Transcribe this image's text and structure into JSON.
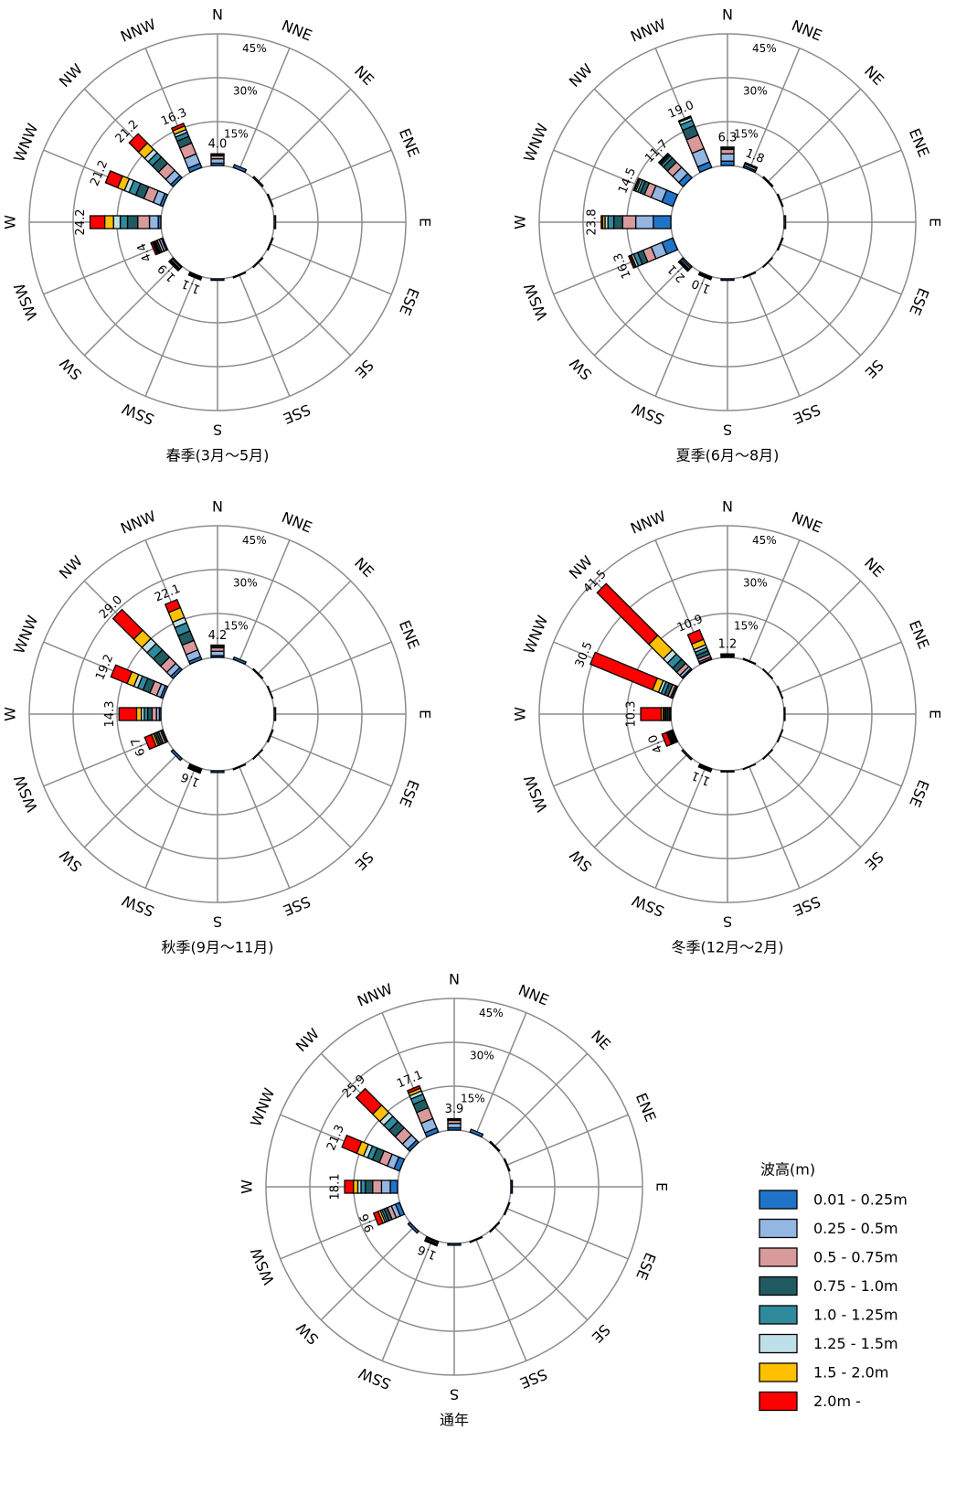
{
  "legend": {
    "title": "波高(m)",
    "items": [
      {
        "name": "0.01 - 0.25m",
        "color": "#1f74c8"
      },
      {
        "name": "0.25 - 0.5m",
        "color": "#93b6e2"
      },
      {
        "name": "0.5 - 0.75m",
        "color": "#d99a9b"
      },
      {
        "name": "0.75 - 1.0m",
        "color": "#215a63"
      },
      {
        "name": "1.0 - 1.25m",
        "color": "#2f8a9c"
      },
      {
        "name": "1.25 - 1.5m",
        "color": "#bfe0e8"
      },
      {
        "name": "1.5 - 2.0m",
        "color": "#ffc000"
      },
      {
        "name": "2.0m -",
        "color": "#ff0000"
      }
    ]
  },
  "chart_data": [
    {
      "type": "rose",
      "title": "春季(3月～5月)",
      "directions": [
        "N",
        "NNE",
        "NE",
        "ENE",
        "E",
        "ESE",
        "SE",
        "SSE",
        "S",
        "SSW",
        "SW",
        "WSW",
        "W",
        "WNW",
        "NW",
        "NNW"
      ],
      "rlim": [
        0,
        45
      ],
      "rticks": [
        {
          "value": 15,
          "label": "15%"
        },
        {
          "value": 30,
          "label": "30%"
        },
        {
          "value": 45,
          "label": "45%"
        }
      ],
      "series": [
        {
          "values": [
            0.8,
            1.0,
            0.5,
            0.3,
            0.5,
            0.3,
            0.3,
            0.3,
            0.5,
            0.3,
            0.4,
            0.5,
            0.9,
            1.0,
            1.0,
            1.5
          ]
        },
        {
          "values": [
            1.5,
            0,
            0,
            0,
            0,
            0,
            0,
            0,
            0,
            0.4,
            0.6,
            0.8,
            3.0,
            2.5,
            2.5,
            3.5
          ]
        },
        {
          "values": [
            1.0,
            0,
            0,
            0,
            0,
            0,
            0,
            0,
            0,
            0.2,
            0.4,
            0.8,
            4.0,
            3.5,
            3.5,
            4.0
          ]
        },
        {
          "values": [
            0.4,
            0,
            0,
            0,
            0,
            0,
            0,
            0,
            0,
            0.1,
            0.2,
            0.6,
            3.5,
            3.0,
            3.0,
            2.5
          ]
        },
        {
          "values": [
            0.2,
            0,
            0,
            0,
            0,
            0,
            0,
            0,
            0,
            0.1,
            0.1,
            0.4,
            2.5,
            2.5,
            2.0,
            1.5
          ]
        },
        {
          "values": [
            0.1,
            0,
            0,
            0,
            0,
            0,
            0,
            0,
            0,
            0,
            0.1,
            0.3,
            2.3,
            1.7,
            1.7,
            1.0
          ]
        },
        {
          "values": [
            0,
            0,
            0,
            0,
            0,
            0,
            0,
            0,
            0,
            0,
            0.1,
            0.4,
            3.0,
            2.5,
            3.0,
            1.3
          ]
        },
        {
          "values": [
            0,
            0,
            0,
            0,
            0,
            0,
            0,
            0,
            0,
            0,
            0,
            0.6,
            5.0,
            4.5,
            4.5,
            1.0
          ]
        }
      ],
      "total_labels": [
        "4.0",
        null,
        null,
        null,
        null,
        null,
        null,
        null,
        null,
        "1.1",
        "1.9",
        "4.4",
        "24.2",
        "21.2",
        "21.2",
        "16.3"
      ]
    },
    {
      "type": "rose",
      "title": "夏季(6月～8月)",
      "directions": [
        "N",
        "NNE",
        "NE",
        "ENE",
        "E",
        "ESE",
        "SE",
        "SSE",
        "S",
        "SSW",
        "SW",
        "WSW",
        "W",
        "WNW",
        "NW",
        "NNW"
      ],
      "rlim": [
        0,
        45
      ],
      "rticks": [
        {
          "value": 15,
          "label": "15%"
        },
        {
          "value": 30,
          "label": "30%"
        },
        {
          "value": 45,
          "label": "45%"
        }
      ],
      "series": [
        {
          "values": [
            1.5,
            0.6,
            0.4,
            0.3,
            0.5,
            0.3,
            0.2,
            0.3,
            0.5,
            0.4,
            0.6,
            4.0,
            6.0,
            4.0,
            2.0,
            2.0
          ]
        },
        {
          "values": [
            2.5,
            0.7,
            0,
            0,
            0,
            0,
            0,
            0,
            0,
            0.3,
            0.6,
            4.0,
            6.0,
            4.0,
            3.0,
            5.0
          ]
        },
        {
          "values": [
            1.5,
            0.3,
            0,
            0,
            0,
            0,
            0,
            0,
            0,
            0.2,
            0.4,
            3.0,
            4.5,
            2.5,
            2.5,
            5.0
          ]
        },
        {
          "values": [
            0.5,
            0.1,
            0,
            0,
            0,
            0,
            0,
            0,
            0,
            0.1,
            0.2,
            2.0,
            3.0,
            1.5,
            2.0,
            3.5
          ]
        },
        {
          "values": [
            0.2,
            0.1,
            0,
            0,
            0,
            0,
            0,
            0,
            0,
            0,
            0.1,
            1.5,
            2.0,
            1.0,
            1.0,
            2.0
          ]
        },
        {
          "values": [
            0.1,
            0,
            0,
            0,
            0,
            0,
            0,
            0,
            0,
            0,
            0.1,
            0.8,
            1.0,
            0.7,
            0.5,
            1.0
          ]
        },
        {
          "values": [
            0,
            0,
            0,
            0,
            0,
            0,
            0,
            0,
            0,
            0,
            0.1,
            0.5,
            0.8,
            0.5,
            0.4,
            0.3
          ]
        },
        {
          "values": [
            0,
            0,
            0,
            0,
            0,
            0,
            0,
            0,
            0,
            0,
            0,
            0.5,
            0.5,
            0.3,
            0.3,
            0.2
          ]
        }
      ],
      "total_labels": [
        "6.3",
        "1.8",
        null,
        null,
        null,
        null,
        null,
        null,
        null,
        "1.0",
        "2.1",
        "16.3",
        "23.8",
        "14.5",
        "11.7",
        "19.0"
      ]
    },
    {
      "type": "rose",
      "title": "秋季(9月～11月)",
      "directions": [
        "N",
        "NNE",
        "NE",
        "ENE",
        "E",
        "ESE",
        "SE",
        "SSE",
        "S",
        "SSW",
        "SW",
        "WSW",
        "W",
        "WNW",
        "NW",
        "NNW"
      ],
      "rlim": [
        0,
        45
      ],
      "rticks": [
        {
          "value": 15,
          "label": "15%"
        },
        {
          "value": 30,
          "label": "30%"
        },
        {
          "value": 45,
          "label": "45%"
        }
      ],
      "series": [
        {
          "values": [
            0.6,
            0.8,
            0.3,
            0.2,
            0.5,
            0.3,
            0.2,
            0.3,
            0.6,
            0.3,
            0.8,
            0.3,
            0.5,
            0.8,
            1.0,
            1.0
          ]
        },
        {
          "values": [
            1.5,
            0,
            0,
            0,
            0,
            0,
            0,
            0,
            0,
            0.4,
            0,
            0.5,
            1.0,
            1.5,
            2.0,
            2.5
          ]
        },
        {
          "values": [
            1.2,
            0,
            0,
            0,
            0,
            0,
            0,
            0,
            0,
            0.4,
            0,
            0.8,
            1.5,
            2.5,
            3.0,
            3.5
          ]
        },
        {
          "values": [
            0.5,
            0,
            0,
            0,
            0,
            0,
            0,
            0,
            0,
            0.2,
            0,
            0.7,
            1.5,
            2.5,
            3.5,
            3.5
          ]
        },
        {
          "values": [
            0.2,
            0,
            0,
            0,
            0,
            0,
            0,
            0,
            0,
            0.1,
            0,
            0.6,
            1.2,
            2.0,
            3.0,
            3.0
          ]
        },
        {
          "values": [
            0.1,
            0,
            0,
            0,
            0,
            0,
            0,
            0,
            0,
            0.1,
            0,
            0.5,
            1.0,
            1.4,
            2.5,
            2.0
          ]
        },
        {
          "values": [
            0.1,
            0,
            0,
            0,
            0,
            0,
            0,
            0,
            0,
            0.1,
            0,
            0.8,
            1.6,
            2.5,
            4.0,
            3.6
          ]
        },
        {
          "values": [
            0,
            0,
            0,
            0,
            0,
            0,
            0,
            0,
            0,
            0,
            0,
            2.5,
            6.0,
            6.0,
            10.0,
            3.0
          ]
        }
      ],
      "total_labels": [
        "4.2",
        null,
        null,
        null,
        null,
        null,
        null,
        null,
        null,
        "1.6",
        null,
        "6.7",
        "14.3",
        "19.2",
        "29.0",
        "22.1"
      ]
    },
    {
      "type": "rose",
      "title": "冬季(12月～2月)",
      "directions": [
        "N",
        "NNE",
        "NE",
        "ENE",
        "E",
        "ESE",
        "SE",
        "SSE",
        "S",
        "SSW",
        "SW",
        "WSW",
        "W",
        "WNW",
        "NW",
        "NNW"
      ],
      "rlim": [
        0,
        45
      ],
      "rticks": [
        {
          "value": 15,
          "label": "15%"
        },
        {
          "value": 30,
          "label": "30%"
        },
        {
          "value": 45,
          "label": "45%"
        }
      ],
      "series": [
        {
          "values": [
            0.2,
            0.3,
            0.2,
            0.2,
            0.3,
            0.2,
            0.2,
            0.2,
            0.4,
            0.2,
            0.5,
            0.2,
            0.2,
            0.3,
            0.5,
            0.3
          ]
        },
        {
          "values": [
            0.4,
            0,
            0,
            0,
            0,
            0,
            0,
            0,
            0,
            0.3,
            0,
            0.3,
            0.4,
            0.5,
            1.0,
            0.6
          ]
        },
        {
          "values": [
            0.3,
            0,
            0,
            0,
            0,
            0,
            0,
            0,
            0,
            0.2,
            0,
            0.4,
            0.5,
            1.0,
            1.5,
            1.0
          ]
        },
        {
          "values": [
            0.1,
            0,
            0,
            0,
            0,
            0,
            0,
            0,
            0,
            0.2,
            0,
            0.4,
            0.6,
            1.3,
            2.0,
            1.3
          ]
        },
        {
          "values": [
            0.1,
            0,
            0,
            0,
            0,
            0,
            0,
            0,
            0,
            0.1,
            0,
            0.3,
            0.5,
            1.2,
            2.5,
            1.2
          ]
        },
        {
          "values": [
            0.1,
            0,
            0,
            0,
            0,
            0,
            0,
            0,
            0,
            0.1,
            0,
            0.3,
            0.4,
            1.0,
            2.0,
            1.0
          ]
        },
        {
          "values": [
            0,
            0,
            0,
            0,
            0,
            0,
            0,
            0,
            0,
            0,
            0,
            0.4,
            0.7,
            2.2,
            7.0,
            2.0
          ]
        },
        {
          "values": [
            0,
            0,
            0,
            0,
            0,
            0,
            0,
            0,
            0,
            0,
            0,
            1.7,
            7.0,
            23.0,
            25.0,
            3.5
          ]
        }
      ],
      "total_labels": [
        "1.2",
        null,
        null,
        null,
        null,
        null,
        null,
        null,
        null,
        "1.1",
        null,
        "4.0",
        "10.3",
        "30.5",
        "41.5",
        "10.9"
      ]
    },
    {
      "type": "rose",
      "title": "通年",
      "directions": [
        "N",
        "NNE",
        "NE",
        "ENE",
        "E",
        "ESE",
        "SE",
        "SSE",
        "S",
        "SSW",
        "SW",
        "WSW",
        "W",
        "WNW",
        "NW",
        "NNW"
      ],
      "rlim": [
        0,
        45
      ],
      "rticks": [
        {
          "value": 15,
          "label": "15%"
        },
        {
          "value": 30,
          "label": "30%"
        },
        {
          "value": 45,
          "label": "45%"
        }
      ],
      "series": [
        {
          "values": [
            0.8,
            1.0,
            0.4,
            0.3,
            0.5,
            0.3,
            0.3,
            0.3,
            0.6,
            0.4,
            0.8,
            1.5,
            2.5,
            2.0,
            1.0,
            1.5
          ]
        },
        {
          "values": [
            1.5,
            0,
            0,
            0,
            0,
            0,
            0,
            0,
            0,
            0.5,
            0,
            1.5,
            3.0,
            2.5,
            2.5,
            3.5
          ]
        },
        {
          "values": [
            1.0,
            0,
            0,
            0,
            0,
            0,
            0,
            0,
            0,
            0.3,
            0,
            1.5,
            3.0,
            3.0,
            3.5,
            4.0
          ]
        },
        {
          "values": [
            0.4,
            0,
            0,
            0,
            0,
            0,
            0,
            0,
            0,
            0.2,
            0,
            1.2,
            2.5,
            2.5,
            3.0,
            3.0
          ]
        },
        {
          "values": [
            0.1,
            0,
            0,
            0,
            0,
            0,
            0,
            0,
            0,
            0.1,
            0,
            0.8,
            1.5,
            1.8,
            2.5,
            2.0
          ]
        },
        {
          "values": [
            0.1,
            0,
            0,
            0,
            0,
            0,
            0,
            0,
            0,
            0.1,
            0,
            0.6,
            1.1,
            1.5,
            1.9,
            1.2
          ]
        },
        {
          "values": [
            0,
            0,
            0,
            0,
            0,
            0,
            0,
            0,
            0,
            0,
            0,
            0.8,
            1.5,
            2.5,
            3.5,
            1.0
          ]
        },
        {
          "values": [
            0,
            0,
            0,
            0,
            0,
            0,
            0,
            0,
            0,
            0,
            0,
            1.7,
            3.0,
            5.5,
            8.0,
            0.9
          ]
        }
      ],
      "total_labels": [
        "3.9",
        null,
        null,
        null,
        null,
        null,
        null,
        null,
        null,
        "1.6",
        null,
        "9.6",
        "18.1",
        "21.3",
        "25.9",
        "17.1"
      ]
    }
  ]
}
